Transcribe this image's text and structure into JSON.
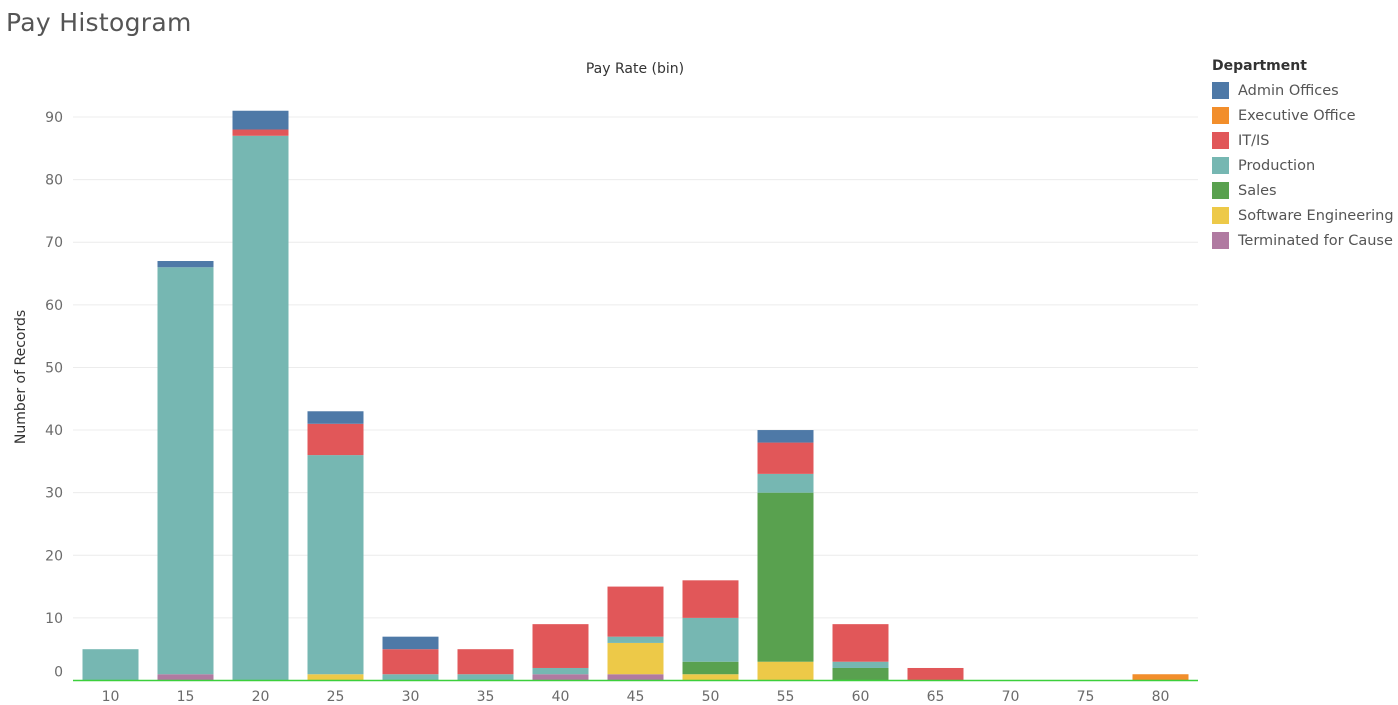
{
  "page": {
    "title": "Pay Histogram"
  },
  "legend": {
    "title": "Department",
    "items": [
      {
        "label": "Admin Offices",
        "color": "#4e79a7"
      },
      {
        "label": "Executive Office",
        "color": "#f28e2b"
      },
      {
        "label": "IT/IS",
        "color": "#e15759"
      },
      {
        "label": "Production",
        "color": "#76b7b2"
      },
      {
        "label": "Sales",
        "color": "#59a14f"
      },
      {
        "label": "Software Engineering",
        "color": "#edc948"
      },
      {
        "label": "Terminated for Cause",
        "color": "#b07aa1"
      }
    ]
  },
  "chart_data": {
    "type": "bar",
    "stacked": true,
    "title": "",
    "xlabel": "Pay Rate (bin)",
    "ylabel": "Number of Records",
    "xaxis_position": "top",
    "ylim": [
      0,
      90
    ],
    "yticks": [
      0,
      10,
      20,
      30,
      40,
      50,
      60,
      70,
      80,
      90
    ],
    "grid": true,
    "legend_position": "right",
    "categories": [
      "10",
      "15",
      "20",
      "25",
      "30",
      "35",
      "40",
      "45",
      "50",
      "55",
      "60",
      "65",
      "70",
      "75",
      "80"
    ],
    "series": [
      {
        "name": "Terminated for Cause",
        "color": "#b07aa1",
        "values": [
          0,
          1,
          0,
          0,
          0,
          0,
          1,
          1,
          0,
          0,
          0,
          0,
          0,
          0,
          0
        ]
      },
      {
        "name": "Software Engineering",
        "color": "#edc948",
        "values": [
          0,
          0,
          0,
          1,
          0,
          0,
          0,
          5,
          1,
          3,
          0,
          0,
          0,
          0,
          0
        ]
      },
      {
        "name": "Sales",
        "color": "#59a14f",
        "values": [
          0,
          0,
          0,
          0,
          0,
          0,
          0,
          0,
          2,
          27,
          2,
          0,
          0,
          0,
          0
        ]
      },
      {
        "name": "Production",
        "color": "#76b7b2",
        "values": [
          5,
          65,
          87,
          35,
          1,
          1,
          1,
          1,
          7,
          3,
          1,
          0,
          0,
          0,
          0
        ]
      },
      {
        "name": "IT/IS",
        "color": "#e15759",
        "values": [
          0,
          0,
          1,
          5,
          4,
          4,
          7,
          8,
          6,
          5,
          6,
          2,
          0,
          0,
          0
        ]
      },
      {
        "name": "Executive Office",
        "color": "#f28e2b",
        "values": [
          0,
          0,
          0,
          0,
          0,
          0,
          0,
          0,
          0,
          0,
          0,
          0,
          0,
          0,
          1
        ]
      },
      {
        "name": "Admin Offices",
        "color": "#4e79a7",
        "values": [
          0,
          1,
          3,
          2,
          2,
          0,
          0,
          0,
          0,
          2,
          0,
          0,
          0,
          0,
          0
        ]
      }
    ]
  }
}
